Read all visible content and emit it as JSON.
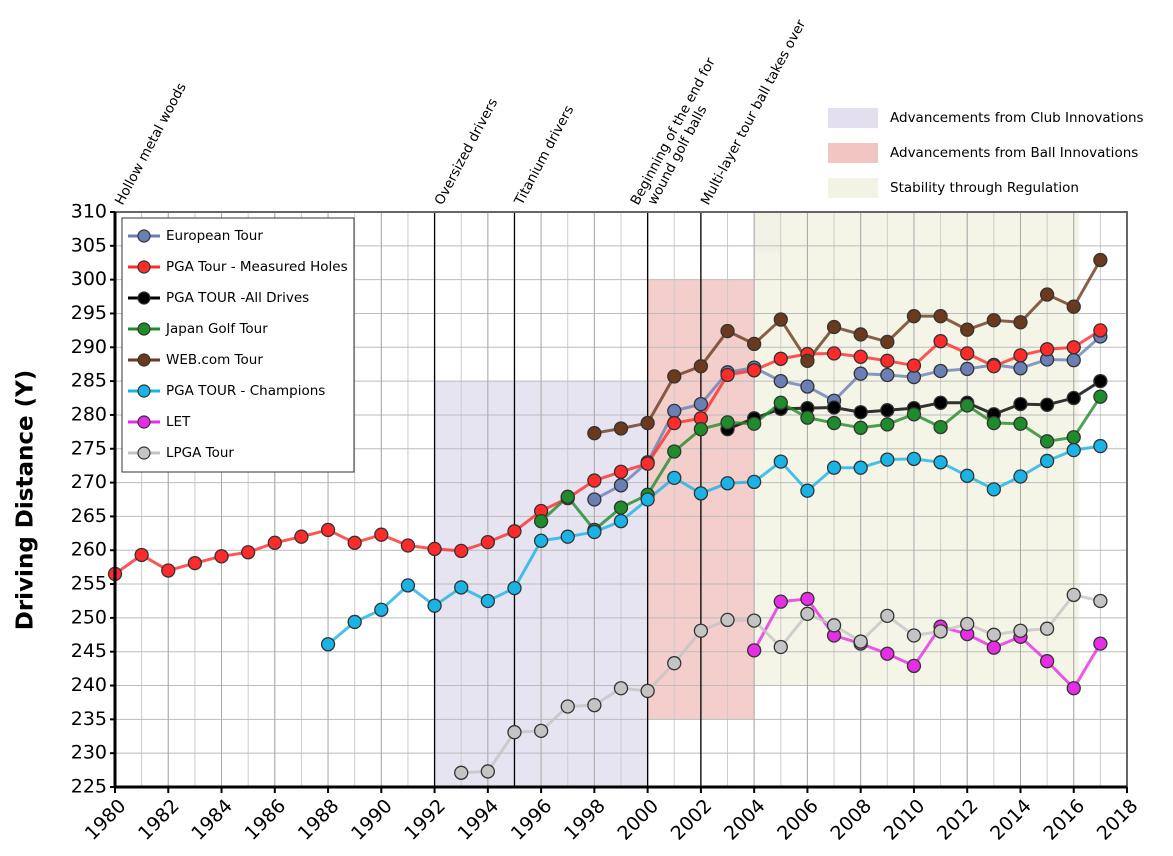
{
  "chart_data": {
    "type": "line",
    "y_label": "Driving Distance (Y)",
    "x": [
      1980,
      1981,
      1982,
      1983,
      1984,
      1985,
      1986,
      1987,
      1988,
      1989,
      1990,
      1991,
      1992,
      1993,
      1994,
      1995,
      1996,
      1997,
      1998,
      1999,
      2000,
      2001,
      2002,
      2003,
      2004,
      2005,
      2006,
      2007,
      2008,
      2009,
      2010,
      2011,
      2012,
      2013,
      2014,
      2015,
      2016,
      2017
    ],
    "xlim": [
      1980,
      2018
    ],
    "xticks": [
      1980,
      1982,
      1984,
      1986,
      1988,
      1990,
      1992,
      1994,
      1996,
      1998,
      2000,
      2002,
      2004,
      2006,
      2008,
      2010,
      2012,
      2014,
      2016,
      2018
    ],
    "ylim": [
      225,
      310
    ],
    "yticks": [
      225,
      230,
      235,
      240,
      245,
      250,
      255,
      260,
      265,
      270,
      275,
      280,
      285,
      290,
      295,
      300,
      305,
      310
    ],
    "grid": true,
    "legend": "top-left",
    "series": [
      {
        "name": "European Tour",
        "color": "#6a7fb5",
        "values": [
          null,
          null,
          null,
          null,
          null,
          null,
          null,
          null,
          null,
          null,
          null,
          null,
          null,
          null,
          null,
          null,
          null,
          null,
          267.5,
          269.6,
          273.0,
          280.6,
          281.6,
          286.3,
          287.0,
          285.0,
          284.2,
          282.1,
          286.1,
          285.9,
          285.6,
          286.5,
          286.8,
          287.4,
          286.9,
          288.2,
          288.1,
          291.6
        ]
      },
      {
        "name": "PGA Tour - Measured Holes",
        "color": "#ff2a2a",
        "values": [
          256.5,
          259.3,
          257.0,
          258.1,
          259.1,
          259.7,
          261.1,
          262.0,
          263.0,
          261.1,
          262.3,
          260.7,
          260.2,
          259.9,
          261.2,
          262.8,
          265.8,
          267.7,
          270.3,
          271.6,
          272.8,
          278.8,
          279.5,
          285.9,
          286.6,
          288.3,
          289.0,
          289.1,
          288.6,
          288.0,
          287.3,
          290.9,
          289.1,
          287.2,
          288.8,
          289.7,
          290.0,
          292.5
        ]
      },
      {
        "name": "PGA TOUR -All Drives",
        "color": "#000000",
        "values": [
          null,
          null,
          null,
          null,
          null,
          null,
          null,
          null,
          null,
          null,
          null,
          null,
          null,
          null,
          null,
          null,
          null,
          null,
          null,
          null,
          null,
          null,
          null,
          277.9,
          279.5,
          280.9,
          281.0,
          281.1,
          280.4,
          280.7,
          281.0,
          281.8,
          281.8,
          280.1,
          281.6,
          281.5,
          282.5,
          285.0
        ]
      },
      {
        "name": "Japan Golf Tour",
        "color": "#1e8c2a",
        "values": [
          null,
          null,
          null,
          null,
          null,
          null,
          null,
          null,
          null,
          null,
          null,
          null,
          null,
          null,
          null,
          null,
          264.3,
          267.9,
          263.0,
          266.3,
          268.2,
          274.6,
          277.9,
          278.9,
          278.7,
          281.8,
          279.6,
          278.8,
          278.1,
          278.6,
          280.1,
          278.2,
          281.4,
          278.8,
          278.7,
          276.1,
          276.7,
          282.7
        ]
      },
      {
        "name": "WEB.com Tour",
        "color": "#6b3a1e",
        "values": [
          null,
          null,
          null,
          null,
          null,
          null,
          null,
          null,
          null,
          null,
          null,
          null,
          null,
          null,
          null,
          null,
          null,
          null,
          277.3,
          278.0,
          278.8,
          285.7,
          287.2,
          292.4,
          290.5,
          294.1,
          288.0,
          293.0,
          291.9,
          290.8,
          294.6,
          294.6,
          292.6,
          294.0,
          293.7,
          297.8,
          296.0,
          302.9
        ]
      },
      {
        "name": "PGA TOUR - Champions",
        "color": "#1ab3e6",
        "values": [
          null,
          null,
          null,
          null,
          null,
          null,
          null,
          null,
          246.1,
          249.4,
          251.2,
          254.8,
          251.8,
          254.5,
          252.5,
          254.4,
          261.4,
          262.0,
          262.7,
          264.3,
          267.5,
          270.7,
          268.4,
          269.9,
          270.1,
          273.1,
          268.8,
          272.2,
          272.2,
          273.4,
          273.5,
          273.0,
          271.0,
          269.0,
          270.9,
          273.2,
          274.8,
          275.4
        ]
      },
      {
        "name": "LET",
        "color": "#e62ee6",
        "values": [
          null,
          null,
          null,
          null,
          null,
          null,
          null,
          null,
          null,
          null,
          null,
          null,
          null,
          null,
          null,
          null,
          null,
          null,
          null,
          null,
          null,
          null,
          null,
          null,
          245.2,
          252.4,
          252.8,
          247.4,
          246.2,
          244.7,
          242.9,
          248.7,
          247.6,
          245.6,
          247.2,
          243.6,
          239.6,
          246.2
        ]
      },
      {
        "name": "LPGA Tour",
        "color": "#c4c4c4",
        "values": [
          null,
          null,
          null,
          null,
          null,
          null,
          null,
          null,
          null,
          null,
          null,
          null,
          null,
          227.1,
          227.3,
          233.1,
          233.3,
          236.9,
          237.1,
          239.6,
          239.2,
          243.3,
          248.1,
          249.7,
          249.6,
          245.7,
          250.6,
          248.9,
          246.5,
          250.3,
          247.4,
          248.0,
          249.1,
          247.5,
          248.1,
          248.4,
          253.4,
          252.5
        ]
      }
    ],
    "shaded_areas": [
      {
        "name": "Advancements from Club Innovations",
        "color": "#e3dfee",
        "spans": [
          {
            "x": [
              1992,
              2000
            ],
            "y": [
              225,
              285
            ]
          },
          {
            "x": [
              2004,
              2005
            ],
            "y": [
              304,
              310
            ]
          }
        ]
      },
      {
        "name": "Advancements from Ball Innovations",
        "color": "#f1c6c2",
        "spans": [
          {
            "x": [
              2000,
              2004
            ],
            "y": [
              235,
              300
            ]
          }
        ]
      },
      {
        "name": "Stability through Regulation",
        "color": "#f3f3e3",
        "spans": [
          {
            "x": [
              2004,
              2016.2
            ],
            "y": [
              240,
              310
            ]
          }
        ]
      }
    ],
    "annotations": [
      {
        "x": 1980,
        "lines": [
          "Hollow metal woods"
        ]
      },
      {
        "x": 1992,
        "lines": [
          "Oversized drivers"
        ]
      },
      {
        "x": 1995,
        "lines": [
          "Titanium drivers"
        ]
      },
      {
        "x": 2000,
        "lines": [
          "Beginning of the end for",
          "wound golf balls"
        ]
      },
      {
        "x": 2002,
        "lines": [
          "Multi-layer tour ball takes over"
        ]
      }
    ]
  }
}
